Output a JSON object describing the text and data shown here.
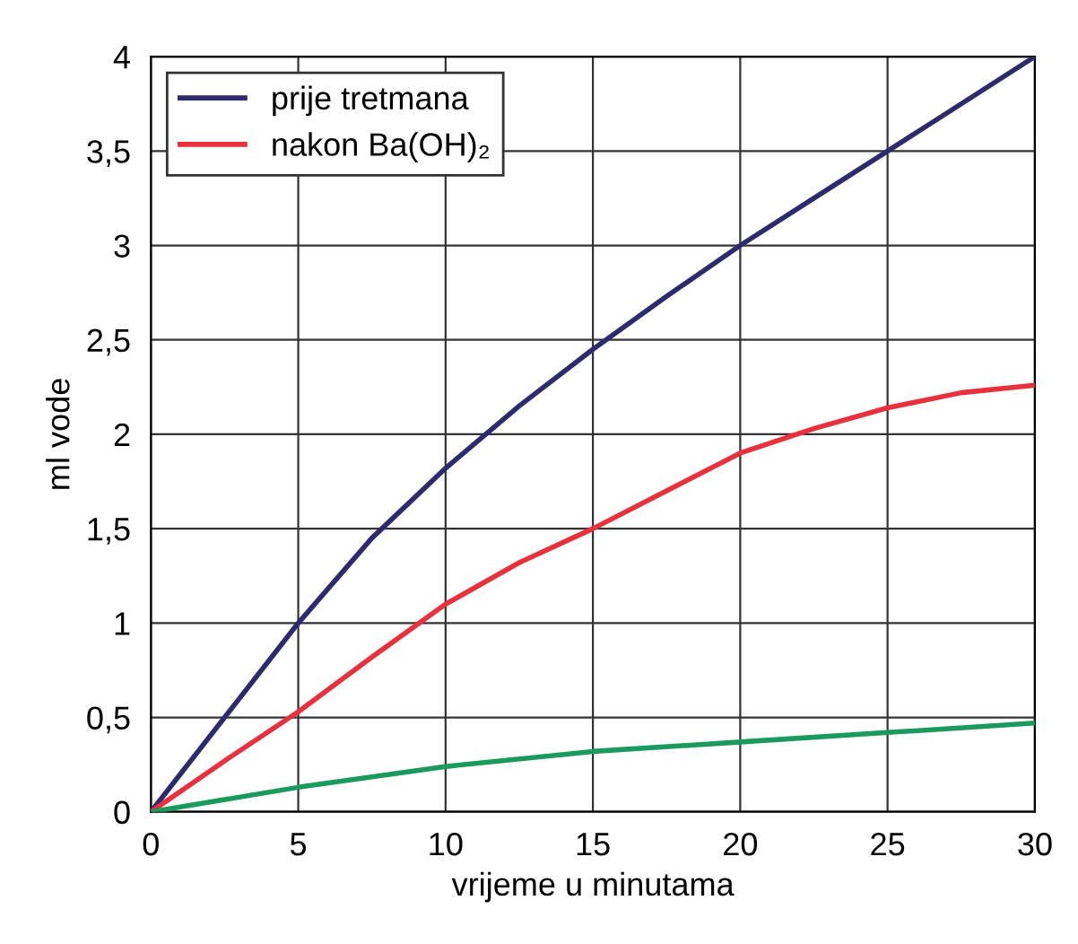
{
  "chart_data": {
    "type": "line",
    "xlabel": "vrijeme u minutama",
    "ylabel": "ml vode",
    "xlim": [
      0,
      30
    ],
    "xticks": [
      0,
      5,
      10,
      15,
      20,
      25,
      30
    ],
    "ylim": [
      0,
      4
    ],
    "yticks": [
      0,
      {
        "value": 0.5,
        "label": "0,5"
      },
      1,
      {
        "value": 1.5,
        "label": "1,5"
      },
      2,
      {
        "value": 2.5,
        "label": "2,5"
      },
      3,
      {
        "value": 3.5,
        "label": "3,5"
      },
      4
    ],
    "grid": true,
    "legend": "top left",
    "marker": "none",
    "line_style": "solid",
    "series": [
      {
        "name": "prije tretmana",
        "color": "#2e2a6e",
        "x": [
          0,
          2.5,
          5,
          7.5,
          10,
          12.5,
          15,
          17.5,
          20,
          22.5,
          25,
          27.5,
          30
        ],
        "values": [
          0,
          0.5,
          1.0,
          1.45,
          1.82,
          2.15,
          2.45,
          2.73,
          3.0,
          3.25,
          3.5,
          3.75,
          4.0
        ]
      },
      {
        "name": "nakon Ba(OH)₂",
        "color": "#e8313c",
        "x": [
          0,
          2.5,
          5,
          7.5,
          10,
          12.5,
          15,
          17.5,
          20,
          22.5,
          25,
          27.5,
          30
        ],
        "values": [
          0,
          0.27,
          0.53,
          0.82,
          1.1,
          1.32,
          1.5,
          1.7,
          1.9,
          2.03,
          2.14,
          2.22,
          2.26
        ]
      },
      {
        "color": "#1a9a5c",
        "x": [
          0,
          5,
          10,
          15,
          20,
          25,
          30
        ],
        "values": [
          0,
          0.13,
          0.24,
          0.32,
          0.37,
          0.42,
          0.47
        ]
      }
    ]
  }
}
